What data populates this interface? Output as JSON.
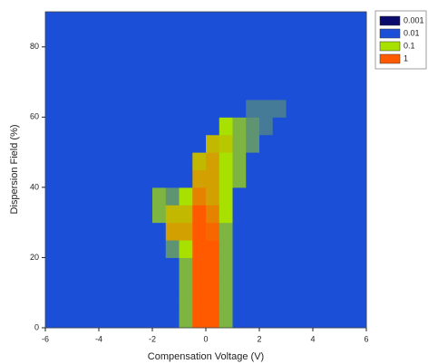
{
  "chart_data": {
    "type": "heatmap",
    "x_label": "Compensation Voltage (V)",
    "y_label": "Dispersion Field (%)",
    "xlim": [
      -6,
      6
    ],
    "xticks": [
      -6,
      -4,
      -2,
      0,
      2,
      4,
      6
    ],
    "ylim": [
      0,
      90
    ],
    "yticks": [
      0,
      20,
      40,
      60,
      80
    ],
    "x": [
      -5.75,
      -5.25,
      -4.75,
      -4.25,
      -3.75,
      -3.25,
      -2.75,
      -2.25,
      -1.75,
      -1.25,
      -0.75,
      -0.25,
      0.25,
      0.75,
      1.25,
      1.75,
      2.25,
      2.75,
      3.25,
      3.75,
      4.25,
      4.75,
      5.25,
      5.75
    ],
    "y": [
      2.5,
      7.5,
      12.5,
      17.5,
      22.5,
      27.5,
      32.5,
      37.5,
      42.5,
      47.5,
      52.5,
      57.5,
      62.5,
      67.5,
      72.5,
      77.5,
      82.5,
      87.5
    ],
    "z": [
      [
        0.01,
        0.01,
        0.01,
        0.01,
        0.01,
        0.01,
        0.01,
        0.01,
        0.01,
        0.01,
        0.05,
        1,
        1,
        0.05,
        0.01,
        0.01,
        0.01,
        0.01,
        0.01,
        0.01,
        0.01,
        0.01,
        0.01,
        0.01
      ],
      [
        0.01,
        0.01,
        0.01,
        0.01,
        0.01,
        0.01,
        0.01,
        0.01,
        0.01,
        0.01,
        0.05,
        1,
        1,
        0.05,
        0.01,
        0.01,
        0.01,
        0.01,
        0.01,
        0.01,
        0.01,
        0.01,
        0.01,
        0.01
      ],
      [
        0.01,
        0.01,
        0.01,
        0.01,
        0.01,
        0.01,
        0.01,
        0.01,
        0.01,
        0.01,
        0.05,
        1,
        1,
        0.05,
        0.01,
        0.01,
        0.01,
        0.01,
        0.01,
        0.01,
        0.01,
        0.01,
        0.01,
        0.01
      ],
      [
        0.01,
        0.01,
        0.01,
        0.01,
        0.01,
        0.01,
        0.01,
        0.01,
        0.01,
        0.01,
        0.05,
        1,
        1,
        0.05,
        0.01,
        0.01,
        0.01,
        0.01,
        0.01,
        0.01,
        0.01,
        0.01,
        0.01,
        0.01
      ],
      [
        0.01,
        0.01,
        0.01,
        0.01,
        0.01,
        0.01,
        0.01,
        0.01,
        0.01,
        0.03,
        0.1,
        1,
        1,
        0.05,
        0.01,
        0.01,
        0.01,
        0.01,
        0.01,
        0.01,
        0.01,
        0.01,
        0.01,
        0.01
      ],
      [
        0.01,
        0.01,
        0.01,
        0.01,
        0.01,
        0.01,
        0.01,
        0.01,
        0.01,
        0.3,
        0.3,
        1,
        0.8,
        0.05,
        0.01,
        0.01,
        0.01,
        0.01,
        0.01,
        0.01,
        0.01,
        0.01,
        0.01,
        0.01
      ],
      [
        0.01,
        0.01,
        0.01,
        0.01,
        0.01,
        0.01,
        0.01,
        0.01,
        0.05,
        0.2,
        0.2,
        1,
        0.5,
        0.1,
        0.01,
        0.01,
        0.01,
        0.01,
        0.01,
        0.01,
        0.01,
        0.01,
        0.01,
        0.01
      ],
      [
        0.01,
        0.01,
        0.01,
        0.01,
        0.01,
        0.01,
        0.01,
        0.01,
        0.05,
        0.03,
        0.1,
        0.5,
        0.3,
        0.1,
        0.01,
        0.01,
        0.01,
        0.01,
        0.01,
        0.01,
        0.01,
        0.01,
        0.01,
        0.01
      ],
      [
        0.01,
        0.01,
        0.01,
        0.01,
        0.01,
        0.01,
        0.01,
        0.01,
        0.01,
        0.01,
        0.01,
        0.3,
        0.3,
        0.1,
        0.05,
        0.01,
        0.01,
        0.01,
        0.01,
        0.01,
        0.01,
        0.01,
        0.01,
        0.01
      ],
      [
        0.01,
        0.01,
        0.01,
        0.01,
        0.01,
        0.01,
        0.01,
        0.01,
        0.01,
        0.01,
        0.01,
        0.2,
        0.3,
        0.1,
        0.05,
        0.01,
        0.01,
        0.01,
        0.01,
        0.01,
        0.01,
        0.01,
        0.01,
        0.01
      ],
      [
        0.01,
        0.01,
        0.01,
        0.01,
        0.01,
        0.01,
        0.01,
        0.01,
        0.01,
        0.01,
        0.01,
        0.01,
        0.2,
        0.15,
        0.05,
        0.03,
        0.01,
        0.01,
        0.01,
        0.01,
        0.01,
        0.01,
        0.01,
        0.01
      ],
      [
        0.01,
        0.01,
        0.01,
        0.01,
        0.01,
        0.01,
        0.01,
        0.01,
        0.01,
        0.01,
        0.01,
        0.01,
        0.01,
        0.1,
        0.05,
        0.03,
        0.02,
        0.01,
        0.01,
        0.01,
        0.01,
        0.01,
        0.01,
        0.01
      ],
      [
        0.01,
        0.01,
        0.01,
        0.01,
        0.01,
        0.01,
        0.01,
        0.01,
        0.01,
        0.01,
        0.01,
        0.01,
        0.01,
        0.01,
        0.01,
        0.02,
        0.02,
        0.02,
        0.01,
        0.01,
        0.01,
        0.01,
        0.01,
        0.01
      ],
      [
        0.01,
        0.01,
        0.01,
        0.01,
        0.01,
        0.01,
        0.01,
        0.01,
        0.01,
        0.01,
        0.01,
        0.01,
        0.01,
        0.01,
        0.01,
        0.01,
        0.01,
        0.01,
        0.01,
        0.01,
        0.01,
        0.01,
        0.01,
        0.01
      ],
      [
        0.01,
        0.01,
        0.01,
        0.01,
        0.01,
        0.01,
        0.01,
        0.01,
        0.01,
        0.01,
        0.01,
        0.01,
        0.01,
        0.01,
        0.01,
        0.01,
        0.01,
        0.01,
        0.01,
        0.01,
        0.01,
        0.01,
        0.01,
        0.01
      ],
      [
        0.01,
        0.01,
        0.01,
        0.01,
        0.01,
        0.01,
        0.01,
        0.01,
        0.01,
        0.01,
        0.01,
        0.01,
        0.01,
        0.01,
        0.01,
        0.01,
        0.01,
        0.01,
        0.01,
        0.01,
        0.01,
        0.01,
        0.01,
        0.01
      ],
      [
        0.01,
        0.01,
        0.01,
        0.01,
        0.01,
        0.01,
        0.01,
        0.01,
        0.01,
        0.01,
        0.01,
        0.01,
        0.01,
        0.01,
        0.01,
        0.01,
        0.01,
        0.01,
        0.01,
        0.01,
        0.01,
        0.01,
        0.01,
        0.01
      ],
      [
        0.01,
        0.01,
        0.01,
        0.01,
        0.01,
        0.01,
        0.01,
        0.01,
        0.01,
        0.01,
        0.01,
        0.01,
        0.01,
        0.01,
        0.01,
        0.01,
        0.01,
        0.01,
        0.01,
        0.01,
        0.01,
        0.01,
        0.01,
        0.01
      ]
    ],
    "color_scale": [
      {
        "value": 0.001,
        "color": "#0b0b6b"
      },
      {
        "value": 0.01,
        "color": "#1b4fd8"
      },
      {
        "value": 0.1,
        "color": "#a8e000"
      },
      {
        "value": 1,
        "color": "#ff5a00"
      }
    ]
  }
}
